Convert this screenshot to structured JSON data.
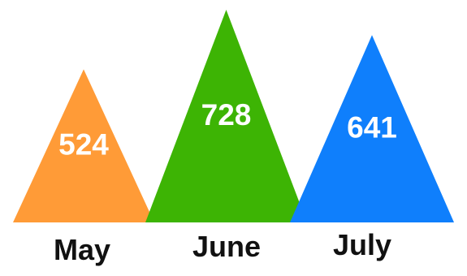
{
  "chart_data": {
    "type": "bar",
    "categories": [
      "May",
      "June",
      "July"
    ],
    "values": [
      524,
      728,
      641
    ],
    "series": [
      {
        "values": [
          524,
          728,
          641
        ]
      }
    ],
    "colors": [
      "#ff9b37",
      "#3db404",
      "#0f7ffc"
    ],
    "mark_shape": "triangle",
    "show_data_labels": true,
    "data_label_color": "#ffffff",
    "category_label_color": "#111111",
    "grid": false,
    "legend": "none",
    "axes": "hidden",
    "title": "",
    "xlabel": "",
    "ylabel": ""
  }
}
